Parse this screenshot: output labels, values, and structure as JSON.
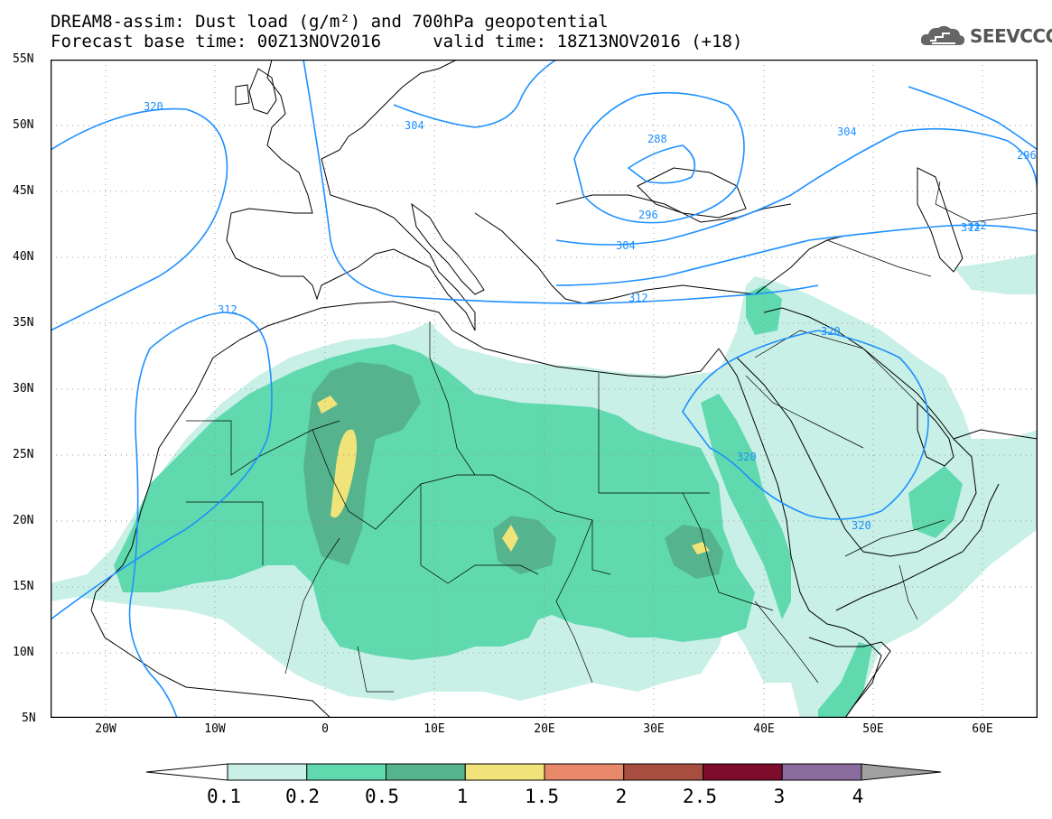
{
  "title": {
    "line1": "DREAM8-assim: Dust load (g/m²) and 700hPa geopotential",
    "line2": "Forecast base time: 00Z13NOV2016     valid time: 18Z13NOV2016 (+18)"
  },
  "logo": {
    "text": "SEEVCCC",
    "icon": "cloud-logo-icon"
  },
  "axes": {
    "lat_labels": [
      "55N",
      "50N",
      "45N",
      "40N",
      "35N",
      "30N",
      "25N",
      "20N",
      "15N",
      "10N",
      "5N"
    ],
    "lon_labels": [
      "20W",
      "10W",
      "0",
      "10E",
      "20E",
      "30E",
      "40E",
      "50E",
      "60E"
    ],
    "lat_range": [
      5,
      55
    ],
    "lon_range": [
      -25,
      65
    ]
  },
  "contour_labels": [
    "320",
    "304",
    "288",
    "296",
    "304",
    "312",
    "312",
    "312",
    "320",
    "320",
    "320",
    "304",
    "296",
    "312"
  ],
  "colorbar": {
    "labels": [
      "0.1",
      "0.2",
      "0.5",
      "1",
      "1.5",
      "2",
      "2.5",
      "3",
      "4"
    ],
    "colors": [
      "#c8f0e6",
      "#5fd9ad",
      "#55b48e",
      "#f0e37a",
      "#e8896a",
      "#a74e40",
      "#7d0d2b",
      "#8a6d9e"
    ],
    "under_color": "#ffffff",
    "over_color": "#a0a0a0"
  },
  "colors": {
    "contour": "#1e90ff",
    "coast": "#000000",
    "dust_0_1": "#c8f0e6",
    "dust_0_2": "#5fd9ad",
    "dust_0_5": "#55b48e",
    "dust_1": "#f0e37a"
  }
}
